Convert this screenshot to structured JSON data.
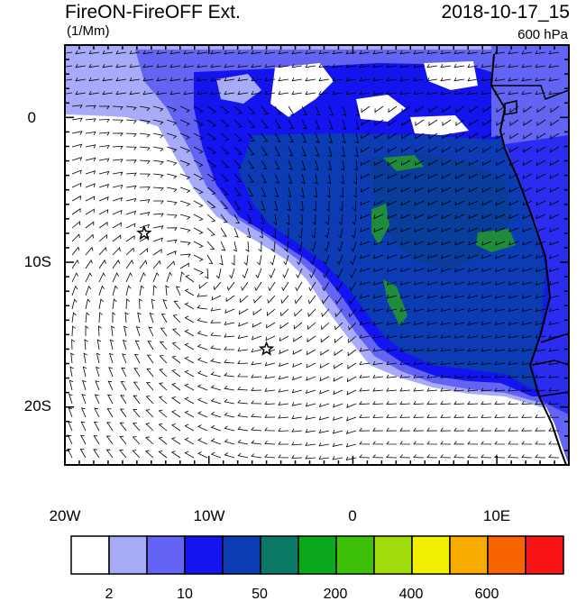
{
  "header": {
    "title_left": "FireON-FireOFF Ext.",
    "title_right": "2018-10-17_15",
    "units": "(1/Mm)",
    "level": "600 hPa"
  },
  "map": {
    "lon_range": [
      -20,
      15
    ],
    "lat_range": [
      -24,
      5
    ],
    "x_tick_labels": [
      "20W",
      "10W",
      "0",
      "10E"
    ],
    "y_tick_labels": [
      "0",
      "10S",
      "20S"
    ],
    "markers": [
      {
        "symbol": "star",
        "lon": -14.5,
        "lat": -8
      },
      {
        "symbol": "star",
        "lon": -6,
        "lat": -16
      }
    ]
  },
  "colorbar": {
    "colors": [
      "#ffffff",
      "#a8acf8",
      "#6464f4",
      "#1414f0",
      "#0c3cb4",
      "#0a7864",
      "#0aa81c",
      "#3cc00a",
      "#a0dc0a",
      "#f0f000",
      "#f8ac00",
      "#f86400",
      "#f81414"
    ],
    "labels": [
      "2",
      "10",
      "50",
      "200",
      "400",
      "600"
    ]
  }
}
